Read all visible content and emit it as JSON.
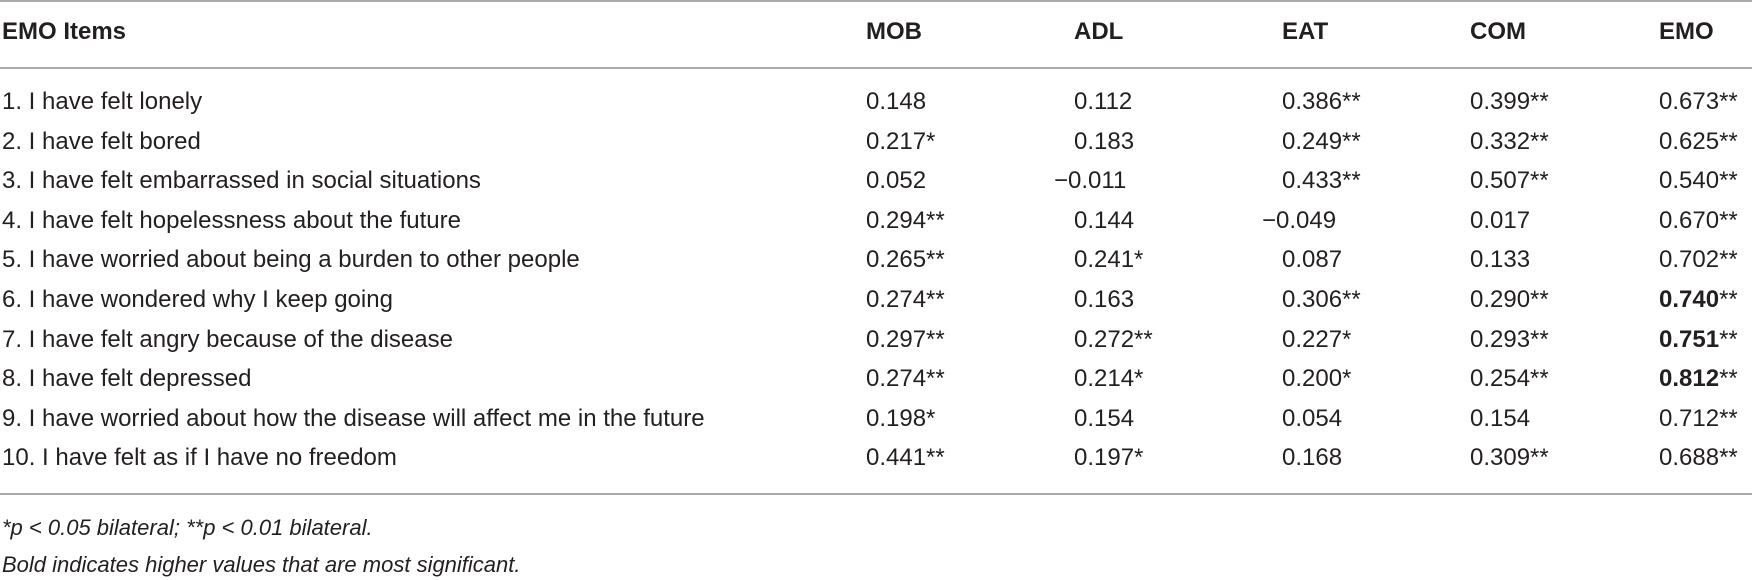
{
  "table": {
    "headers": [
      "EMO Items",
      "MOB",
      "ADL",
      "EAT",
      "COM",
      "EMO"
    ],
    "rows": [
      {
        "item": "1. I have felt lonely",
        "mob": "0.148",
        "adl": "0.112",
        "eat": "0.386**",
        "com": "0.399**",
        "emo_value": "0.673",
        "emo_sig": "**",
        "emo_bold": false
      },
      {
        "item": "2. I have felt bored",
        "mob": "0.217*",
        "adl": "0.183",
        "eat": "0.249**",
        "com": "0.332**",
        "emo_value": "0.625",
        "emo_sig": "**",
        "emo_bold": false
      },
      {
        "item": "3. I have felt embarrassed in social situations",
        "mob": "0.052",
        "adl": "−0.011",
        "eat": "0.433**",
        "com": "0.507**",
        "emo_value": "0.540",
        "emo_sig": "**",
        "emo_bold": false
      },
      {
        "item": "4. I have felt hopelessness about the future",
        "mob": "0.294**",
        "adl": "0.144",
        "eat": "−0.049",
        "com": "0.017",
        "emo_value": "0.670",
        "emo_sig": "**",
        "emo_bold": false
      },
      {
        "item": "5. I have worried about being a burden to other people",
        "mob": "0.265**",
        "adl": "0.241*",
        "eat": "0.087",
        "com": "0.133",
        "emo_value": "0.702",
        "emo_sig": "**",
        "emo_bold": false
      },
      {
        "item": "6. I have wondered why I keep going",
        "mob": "0.274**",
        "adl": "0.163",
        "eat": "0.306**",
        "com": "0.290**",
        "emo_value": "0.740",
        "emo_sig": "**",
        "emo_bold": true
      },
      {
        "item": "7. I have felt angry because of the disease",
        "mob": "0.297**",
        "adl": "0.272**",
        "eat": "0.227*",
        "com": "0.293**",
        "emo_value": "0.751",
        "emo_sig": "**",
        "emo_bold": true
      },
      {
        "item": "8. I have felt depressed",
        "mob": "0.274**",
        "adl": "0.214*",
        "eat": "0.200*",
        "com": "0.254**",
        "emo_value": "0.812",
        "emo_sig": "**",
        "emo_bold": true
      },
      {
        "item": "9. I have worried about how the disease will affect me in the future",
        "mob": "0.198*",
        "adl": "0.154",
        "eat": "0.054",
        "com": "0.154",
        "emo_value": "0.712",
        "emo_sig": "**",
        "emo_bold": false
      },
      {
        "item": "10. I have felt as if I have no freedom",
        "mob": "0.441**",
        "adl": "0.197*",
        "eat": "0.168",
        "com": "0.309**",
        "emo_value": "0.688",
        "emo_sig": "**",
        "emo_bold": false
      }
    ]
  },
  "footnotes": [
    "*p < 0.05 bilateral; **p < 0.01 bilateral.",
    "Bold indicates higher values that are most significant."
  ]
}
